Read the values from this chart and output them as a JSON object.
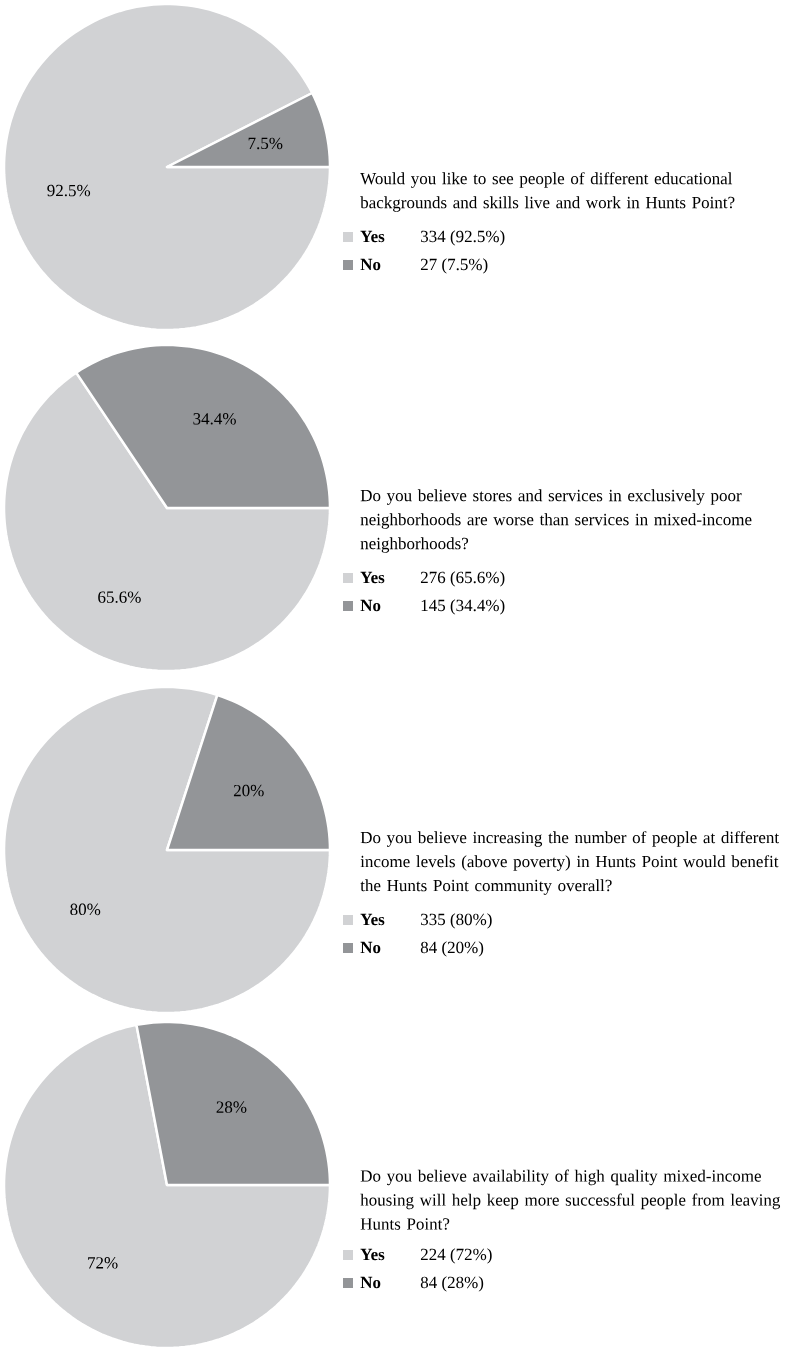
{
  "chart_data": [
    {
      "type": "pie",
      "title": "Would you like to see people of different educational backgrounds and skills live and work in Hunts Point?",
      "categories": [
        "Yes",
        "No"
      ],
      "values": [
        92.5,
        7.5
      ],
      "colors": [
        "#d1d2d4",
        "#939598"
      ],
      "value_labels": [
        "92.5%",
        "7.5%"
      ],
      "annotations": [
        "334 (92.5%)",
        "27 (7.5%)"
      ],
      "legend": "right"
    },
    {
      "type": "pie",
      "title": "Do you believe stores and services in exclusively poor neighborhoods are worse than services in mixed-income neighborhoods?",
      "categories": [
        "Yes",
        "No"
      ],
      "values": [
        65.6,
        34.4
      ],
      "colors": [
        "#d1d2d4",
        "#939598"
      ],
      "value_labels": [
        "65.6%",
        "34.4%"
      ],
      "annotations": [
        "276 (65.6%)",
        "145 (34.4%)"
      ],
      "legend": "right"
    },
    {
      "type": "pie",
      "title": "Do you believe increasing the number of people at different income levels (above poverty) in Hunts Point would benefit the Hunts Point community overall?",
      "categories": [
        "Yes",
        "No"
      ],
      "values": [
        80,
        20
      ],
      "colors": [
        "#d1d2d4",
        "#939598"
      ],
      "value_labels": [
        "80%",
        "20%"
      ],
      "annotations": [
        "335 (80%)",
        "84 (20%)"
      ],
      "legend": "right"
    },
    {
      "type": "pie",
      "title": "Do you believe availability of high quality mixed-income housing will help keep more successful people from leaving Hunts Point?",
      "categories": [
        "Yes",
        "No"
      ],
      "values": [
        72,
        28
      ],
      "colors": [
        "#d1d2d4",
        "#939598"
      ],
      "value_labels": [
        "72%",
        "28%"
      ],
      "annotations": [
        "224 (72%)",
        "84 (28%)"
      ],
      "legend": "right"
    }
  ]
}
